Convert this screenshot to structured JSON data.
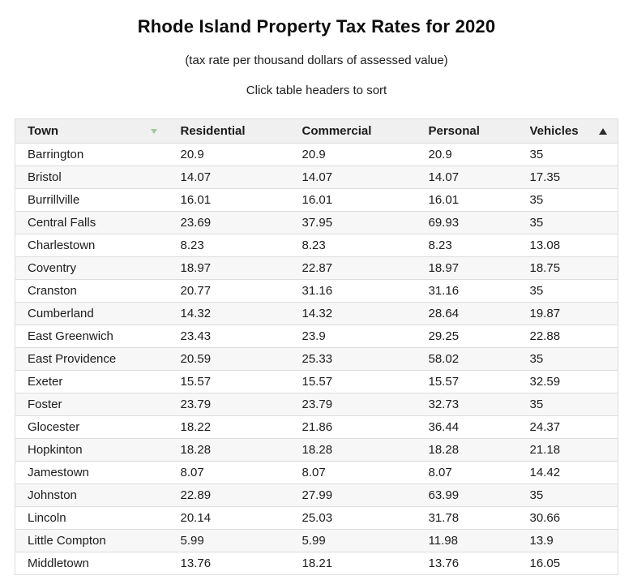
{
  "page": {
    "title": "Rhode Island Property Tax Rates for 2020",
    "subtitle": "(tax rate per thousand dollars of assessed value)",
    "instruction": "Click table headers to sort"
  },
  "table": {
    "columns": [
      {
        "key": "town",
        "label": "Town"
      },
      {
        "key": "residential",
        "label": "Residential"
      },
      {
        "key": "commercial",
        "label": "Commercial"
      },
      {
        "key": "personal",
        "label": "Personal"
      },
      {
        "key": "vehicles",
        "label": "Vehicles"
      }
    ],
    "sort_indicators": {
      "town": "triangle-down-icon",
      "vehicles": "triangle-up-icon"
    },
    "rows": [
      {
        "town": "Barrington",
        "residential": "20.9",
        "commercial": "20.9",
        "personal": "20.9",
        "vehicles": "35"
      },
      {
        "town": "Bristol",
        "residential": "14.07",
        "commercial": "14.07",
        "personal": "14.07",
        "vehicles": "17.35"
      },
      {
        "town": "Burrillville",
        "residential": "16.01",
        "commercial": "16.01",
        "personal": "16.01",
        "vehicles": "35"
      },
      {
        "town": "Central Falls",
        "residential": "23.69",
        "commercial": "37.95",
        "personal": "69.93",
        "vehicles": "35"
      },
      {
        "town": "Charlestown",
        "residential": "8.23",
        "commercial": "8.23",
        "personal": "8.23",
        "vehicles": "13.08"
      },
      {
        "town": "Coventry",
        "residential": "18.97",
        "commercial": "22.87",
        "personal": "18.97",
        "vehicles": "18.75"
      },
      {
        "town": "Cranston",
        "residential": "20.77",
        "commercial": "31.16",
        "personal": "31.16",
        "vehicles": "35"
      },
      {
        "town": "Cumberland",
        "residential": "14.32",
        "commercial": "14.32",
        "personal": "28.64",
        "vehicles": "19.87"
      },
      {
        "town": "East Greenwich",
        "residential": "23.43",
        "commercial": "23.9",
        "personal": "29.25",
        "vehicles": "22.88"
      },
      {
        "town": "East Providence",
        "residential": "20.59",
        "commercial": "25.33",
        "personal": "58.02",
        "vehicles": "35"
      },
      {
        "town": "Exeter",
        "residential": "15.57",
        "commercial": "15.57",
        "personal": "15.57",
        "vehicles": "32.59"
      },
      {
        "town": "Foster",
        "residential": "23.79",
        "commercial": "23.79",
        "personal": "32.73",
        "vehicles": "35"
      },
      {
        "town": "Glocester",
        "residential": "18.22",
        "commercial": "21.86",
        "personal": "36.44",
        "vehicles": "24.37"
      },
      {
        "town": "Hopkinton",
        "residential": "18.28",
        "commercial": "18.28",
        "personal": "18.28",
        "vehicles": "21.18"
      },
      {
        "town": "Jamestown",
        "residential": "8.07",
        "commercial": "8.07",
        "personal": "8.07",
        "vehicles": "14.42"
      },
      {
        "town": "Johnston",
        "residential": "22.89",
        "commercial": "27.99",
        "personal": "63.99",
        "vehicles": "35"
      },
      {
        "town": "Lincoln",
        "residential": "20.14",
        "commercial": "25.03",
        "personal": "31.78",
        "vehicles": "30.66"
      },
      {
        "town": "Little Compton",
        "residential": "5.99",
        "commercial": "5.99",
        "personal": "11.98",
        "vehicles": "13.9"
      },
      {
        "town": "Middletown",
        "residential": "13.76",
        "commercial": "18.21",
        "personal": "13.76",
        "vehicles": "16.05"
      }
    ]
  },
  "colors": {
    "header_bg": "#f0f0f0",
    "stripe": "#f7f7f7",
    "border": "#dddddd",
    "text": "#212121",
    "sort_inactive": "#8fbc8f",
    "sort_active": "#2b2b2b"
  }
}
